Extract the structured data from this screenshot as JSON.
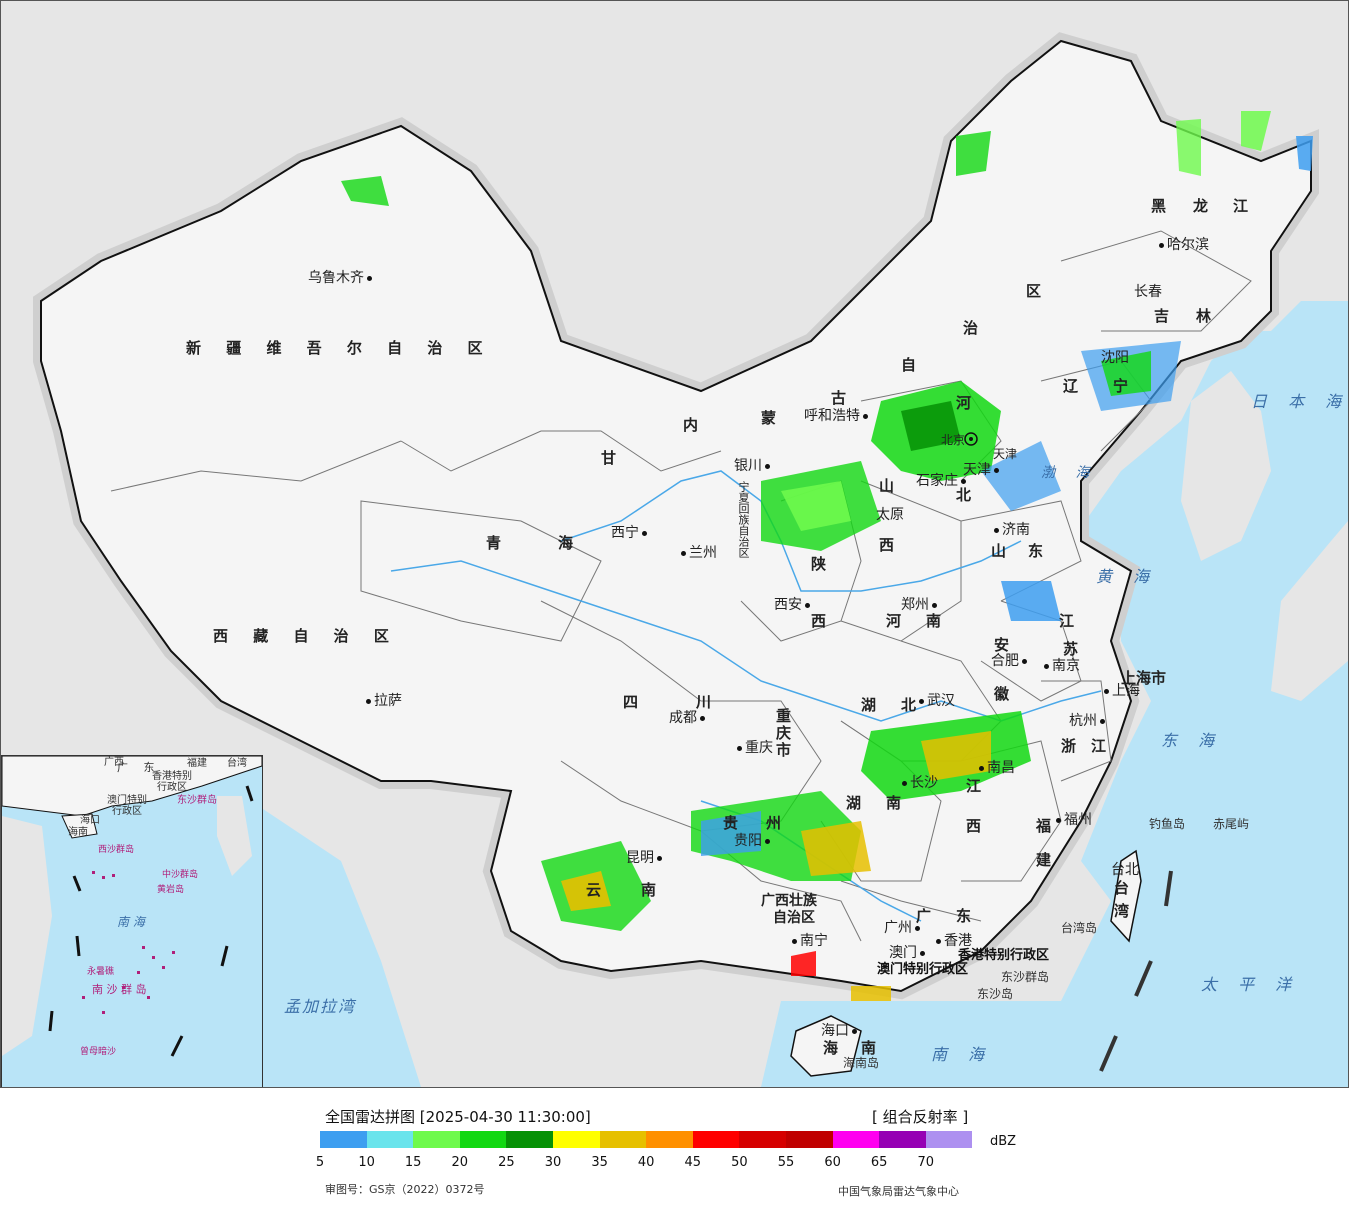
{
  "legend": {
    "title": "全国雷达拼图 [2025-04-30 11:30:00]",
    "product": "[ 组合反射率 ]",
    "unit": "dBZ",
    "approval": "审图号：GS京（2022）0372号",
    "source": "中国气象局雷达气象中心",
    "scale": [
      {
        "label": "5",
        "color": "#3d9ef0"
      },
      {
        "label": "10",
        "color": "#6ae4ec"
      },
      {
        "label": "15",
        "color": "#6efa4c"
      },
      {
        "label": "20",
        "color": "#12d812"
      },
      {
        "label": "25",
        "color": "#069106"
      },
      {
        "label": "30",
        "color": "#ffff00"
      },
      {
        "label": "35",
        "color": "#e6c000"
      },
      {
        "label": "40",
        "color": "#ff9000"
      },
      {
        "label": "45",
        "color": "#ff0000"
      },
      {
        "label": "50",
        "color": "#d60000"
      },
      {
        "label": "55",
        "color": "#c00000"
      },
      {
        "label": "60",
        "color": "#ff00f0"
      },
      {
        "label": "65",
        "color": "#9600b4"
      },
      {
        "label": "70",
        "color": "#ad90f0"
      }
    ]
  },
  "map": {
    "colors": {
      "sea": "#b9e4f7",
      "land": "#f5f5f5",
      "foreign": "#e6e6e6",
      "border": "#111111",
      "river": "#4aa8e8"
    },
    "regions": {
      "xinjiang": "新 疆 维 吾 尔 自 治 区",
      "tibet": "西 藏 自 治 区",
      "qinghai1": "青",
      "qinghai2": "海",
      "gansu": "甘",
      "sichuan1": "四",
      "sichuan2": "川",
      "yunnan1": "云",
      "yunnan2": "南",
      "guizhou1": "贵",
      "guizhou2": "州",
      "guangxi1": "广西壮族",
      "guangxi2": "自治区",
      "guangdong1": "广",
      "guangdong2": "东",
      "hainan1": "海",
      "hainan2": "南",
      "hunan1": "湖",
      "hunan2": "南",
      "hubei1": "湖",
      "hubei2": "北",
      "jiangxi1": "江",
      "jiangxi2": "西",
      "fujian1": "福",
      "fujian2": "建",
      "zhejiang1": "浙",
      "zhejiang2": "江",
      "anhui1": "安",
      "anhui2": "徽",
      "jiangsu1": "江",
      "jiangsu2": "苏",
      "shandong1": "山",
      "shandong2": "东",
      "henan1": "河",
      "henan2": "南",
      "shanxi1": "山",
      "shanxi2": "西",
      "shaanxi1": "陕",
      "shaanxi2": "西",
      "hebei1": "河",
      "hebei2": "北",
      "nm1": "内",
      "nm2": "蒙",
      "nm3": "古",
      "nm4": "自",
      "nm5": "治",
      "nm6": "区",
      "hlj1": "黑",
      "hlj2": "龙",
      "hlj3": "江",
      "jilin1": "吉",
      "jilin2": "林",
      "liaoning1": "辽",
      "liaoning2": "宁",
      "ningxia": "宁夏回族自治区",
      "taiwan1": "台",
      "taiwan2": "湾",
      "chongqing1": "重",
      "chongqing2": "庆",
      "chongqing3": "市",
      "shanghai": "上海市",
      "beijing": "北京",
      "tianjin": "天津",
      "hk": "香港特别行政区",
      "macau": "澳门特别行政区"
    },
    "cities": {
      "urumqi": "乌鲁木齐",
      "lhasa": "拉萨",
      "xining": "西宁",
      "lanzhou": "兰州",
      "yinchuan": "银川",
      "chengdu": "成都",
      "chongqing": "重庆",
      "kunming": "昆明",
      "guiyang": "贵阳",
      "nanning": "南宁",
      "guangzhou": "广州",
      "hongkong": "香港",
      "macau": "澳门",
      "haikou": "海口",
      "changsha": "长沙",
      "wuhan": "武汉",
      "nanchang": "南昌",
      "fuzhou": "福州",
      "hangzhou": "杭州",
      "shanghai": "上海",
      "nanjing": "南京",
      "hefei": "合肥",
      "zhengzhou": "郑州",
      "xian": "西安",
      "taiyuan": "太原",
      "shijiazhuang": "石家庄",
      "jinan": "济南",
      "tianjin": "天津",
      "hohhot": "呼和浩特",
      "shenyang": "沈阳",
      "changchun": "长春",
      "harbin": "哈尔滨",
      "taipei": "台北"
    },
    "seas": {
      "japan_sea": "日 本 海",
      "yellow_sea": "黄 海",
      "east_sea": "东 海",
      "pacific": "太 平 洋",
      "south_sea": "南 海",
      "bohai": "渤 海",
      "bengal": "孟加拉湾"
    },
    "islands": {
      "diaoyu": "钓鱼岛",
      "chiwei": "赤尾屿",
      "taiwan_island": "台湾岛",
      "dongsha_qd": "东沙群岛",
      "dongsha": "东沙岛",
      "hainan_island": "海南岛"
    },
    "inset": {
      "guangxi": "广西",
      "guangdong": "广 东",
      "fujian": "福建",
      "taiwan": "台湾",
      "hk": "香港特别",
      "hk2": "行政区",
      "macau": "澳门特别",
      "macau2": "行政区",
      "dongsha": "东沙群岛",
      "haikou": "海口",
      "hainan": "海南",
      "xisha": "西沙群岛",
      "zhongsha": "中沙群岛",
      "huangyan": "黄岩岛",
      "nansha": "南 沙 群 岛",
      "southsea": "南 海",
      "zengmu": "曾母暗沙",
      "yongshu": "永暑礁"
    }
  }
}
